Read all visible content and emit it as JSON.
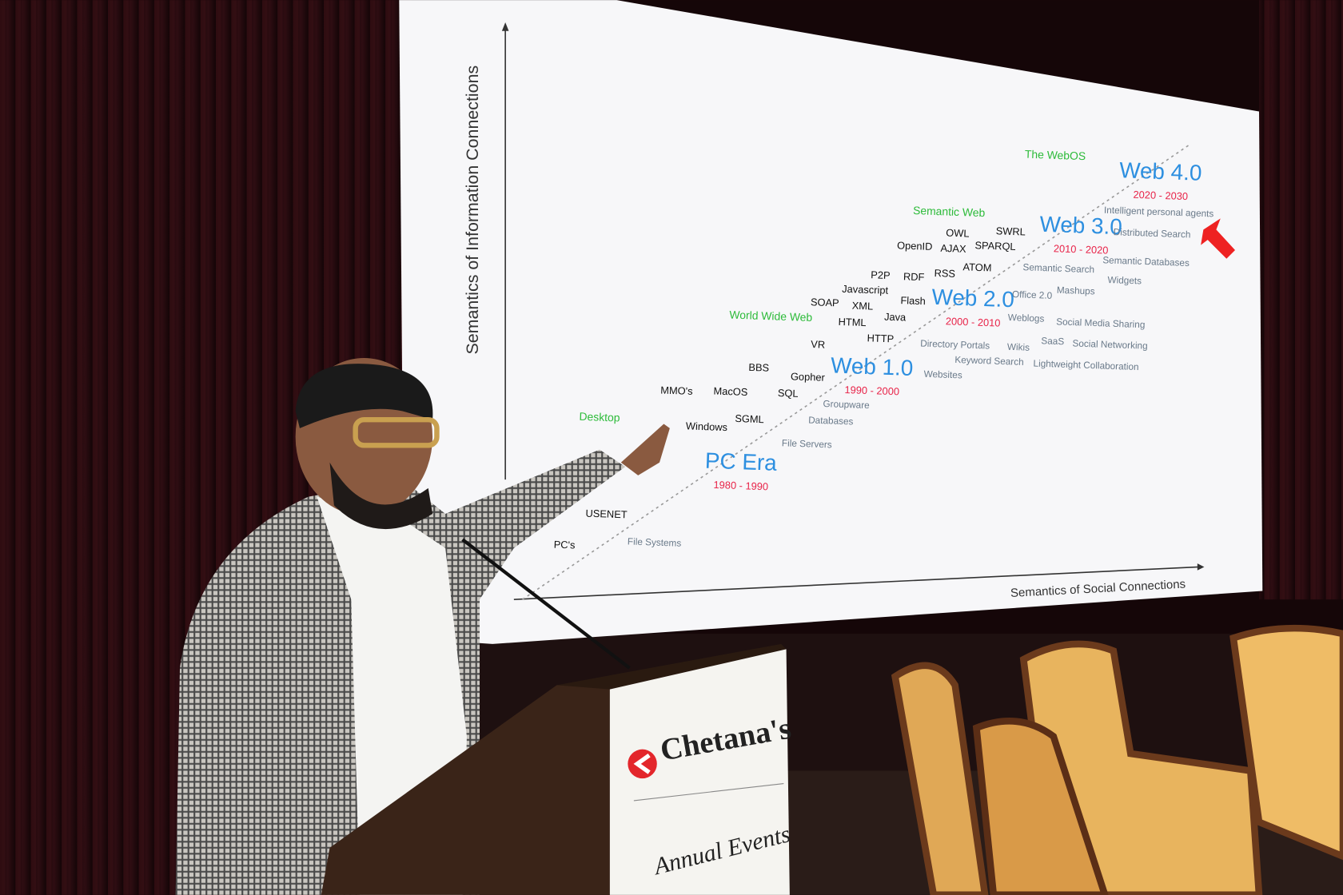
{
  "slide": {
    "y_axis_label": "Semantics of Information Connections",
    "x_axis_label": "Semantics of Social Connections",
    "eras": [
      {
        "name": "PC Era",
        "years": "1980 - 1990"
      },
      {
        "name": "Web 1.0",
        "years": "1990 - 2000"
      },
      {
        "name": "Web 2.0",
        "years": "2000 - 2010"
      },
      {
        "name": "Web 3.0",
        "years": "2010 - 2020"
      },
      {
        "name": "Web 4.0",
        "years": "2020 - 2030"
      }
    ],
    "themes": [
      "Desktop",
      "World Wide Web",
      "Semantic Web",
      "The WebOS"
    ],
    "technologies": [
      "PC's",
      "USENET",
      "MMO's",
      "MacOS",
      "Windows",
      "SGML",
      "BBS",
      "Gopher",
      "SQL",
      "VR",
      "HTTP",
      "HTML",
      "SOAP",
      "XML",
      "Javascript",
      "P2P",
      "RDF",
      "Java",
      "Flash",
      "RSS",
      "ATOM",
      "OpenID",
      "AJAX",
      "OWL",
      "SPARQL",
      "SWRL"
    ],
    "applications": [
      "File Systems",
      "File Servers",
      "Databases",
      "Groupware",
      "Websites",
      "Directory Portals",
      "Keyword Search",
      "Wikis",
      "Weblogs",
      "Office 2.0",
      "SaaS",
      "Lightweight Collaboration",
      "Social Networking",
      "Social Media Sharing",
      "Mashups",
      "Semantic Search",
      "Widgets",
      "Semantic Databases",
      "Distributed Search",
      "Intelligent personal agents"
    ]
  },
  "podium": {
    "brand": "Chetana's",
    "tagline": "Annual Events"
  }
}
